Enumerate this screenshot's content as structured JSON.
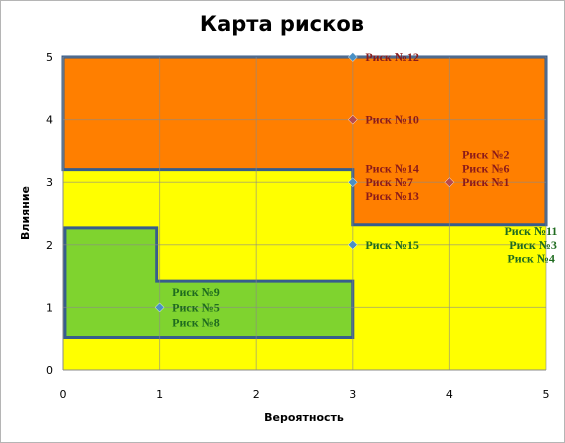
{
  "chart_data": {
    "type": "scatter",
    "title": "Карта рисков",
    "xlabel": "Вероятность",
    "ylabel": "Влияние",
    "xlim": [
      0,
      5
    ],
    "ylim": [
      0,
      5
    ],
    "xticks": [
      "0",
      "1",
      "2",
      "3",
      "4",
      "5"
    ],
    "yticks": [
      "0",
      "1",
      "2",
      "3",
      "4",
      "5"
    ],
    "grid": true,
    "zones": [
      {
        "name": "high",
        "color": "#ff7f00",
        "polygon": [
          [
            0,
            5
          ],
          [
            5,
            5
          ],
          [
            5,
            2.32
          ],
          [
            3,
            2.32
          ],
          [
            3,
            3.2
          ],
          [
            0,
            3.2
          ]
        ]
      },
      {
        "name": "low",
        "color": "#7fd32f",
        "polygon": [
          [
            0.02,
            2.27
          ],
          [
            0.97,
            2.27
          ],
          [
            0.97,
            1.42
          ],
          [
            3,
            1.42
          ],
          [
            3,
            0.52
          ],
          [
            0.02,
            0.52
          ]
        ]
      }
    ],
    "background_color": "#ffff00",
    "border_color": "#375d8c",
    "points": [
      {
        "x": 3,
        "y": 5,
        "color": "#4a90c4"
      },
      {
        "x": 3,
        "y": 4,
        "color": "#b94a4a"
      },
      {
        "x": 3,
        "y": 3,
        "color": "#4a90c4"
      },
      {
        "x": 4,
        "y": 3,
        "color": "#b94a4a"
      },
      {
        "x": 3,
        "y": 2,
        "color": "#4a90c4"
      },
      {
        "x": 1,
        "y": 1,
        "color": "#4a90c4"
      }
    ],
    "annotations": [
      {
        "text": "Риск №12",
        "x": 3.13,
        "y": 5,
        "color": "#8b1a1a"
      },
      {
        "text": "Риск №10",
        "x": 3.13,
        "y": 4,
        "color": "#8b1a1a"
      },
      {
        "text": "Риск №14",
        "x": 3.13,
        "y": 3.22,
        "color": "#8b1a1a"
      },
      {
        "text": "Риск №7",
        "x": 3.13,
        "y": 3,
        "color": "#8b1a1a"
      },
      {
        "text": "Риск №13",
        "x": 3.13,
        "y": 2.78,
        "color": "#8b1a1a"
      },
      {
        "text": "Риск №2",
        "x": 4.13,
        "y": 3.44,
        "color": "#8b1a1a"
      },
      {
        "text": "Риск №6",
        "x": 4.13,
        "y": 3.22,
        "color": "#8b1a1a"
      },
      {
        "text": "Риск №1",
        "x": 4.13,
        "y": 3,
        "color": "#8b1a1a"
      },
      {
        "text": "Риск №15",
        "x": 3.13,
        "y": 2,
        "color": "#1f6b1f"
      },
      {
        "text": "Риск №11",
        "x": 4.57,
        "y": 2.22,
        "color": "#1f6b1f"
      },
      {
        "text": "Риск №3",
        "x": 4.62,
        "y": 2,
        "color": "#1f6b1f"
      },
      {
        "text": "Риск №4",
        "x": 4.6,
        "y": 1.78,
        "color": "#1f6b1f"
      },
      {
        "text": "Риск №9",
        "x": 1.13,
        "y": 1.25,
        "color": "#1f6b1f"
      },
      {
        "text": "Риск №5",
        "x": 1.13,
        "y": 1,
        "color": "#1f6b1f"
      },
      {
        "text": "Риск №8",
        "x": 1.13,
        "y": 0.76,
        "color": "#1f6b1f"
      }
    ]
  }
}
